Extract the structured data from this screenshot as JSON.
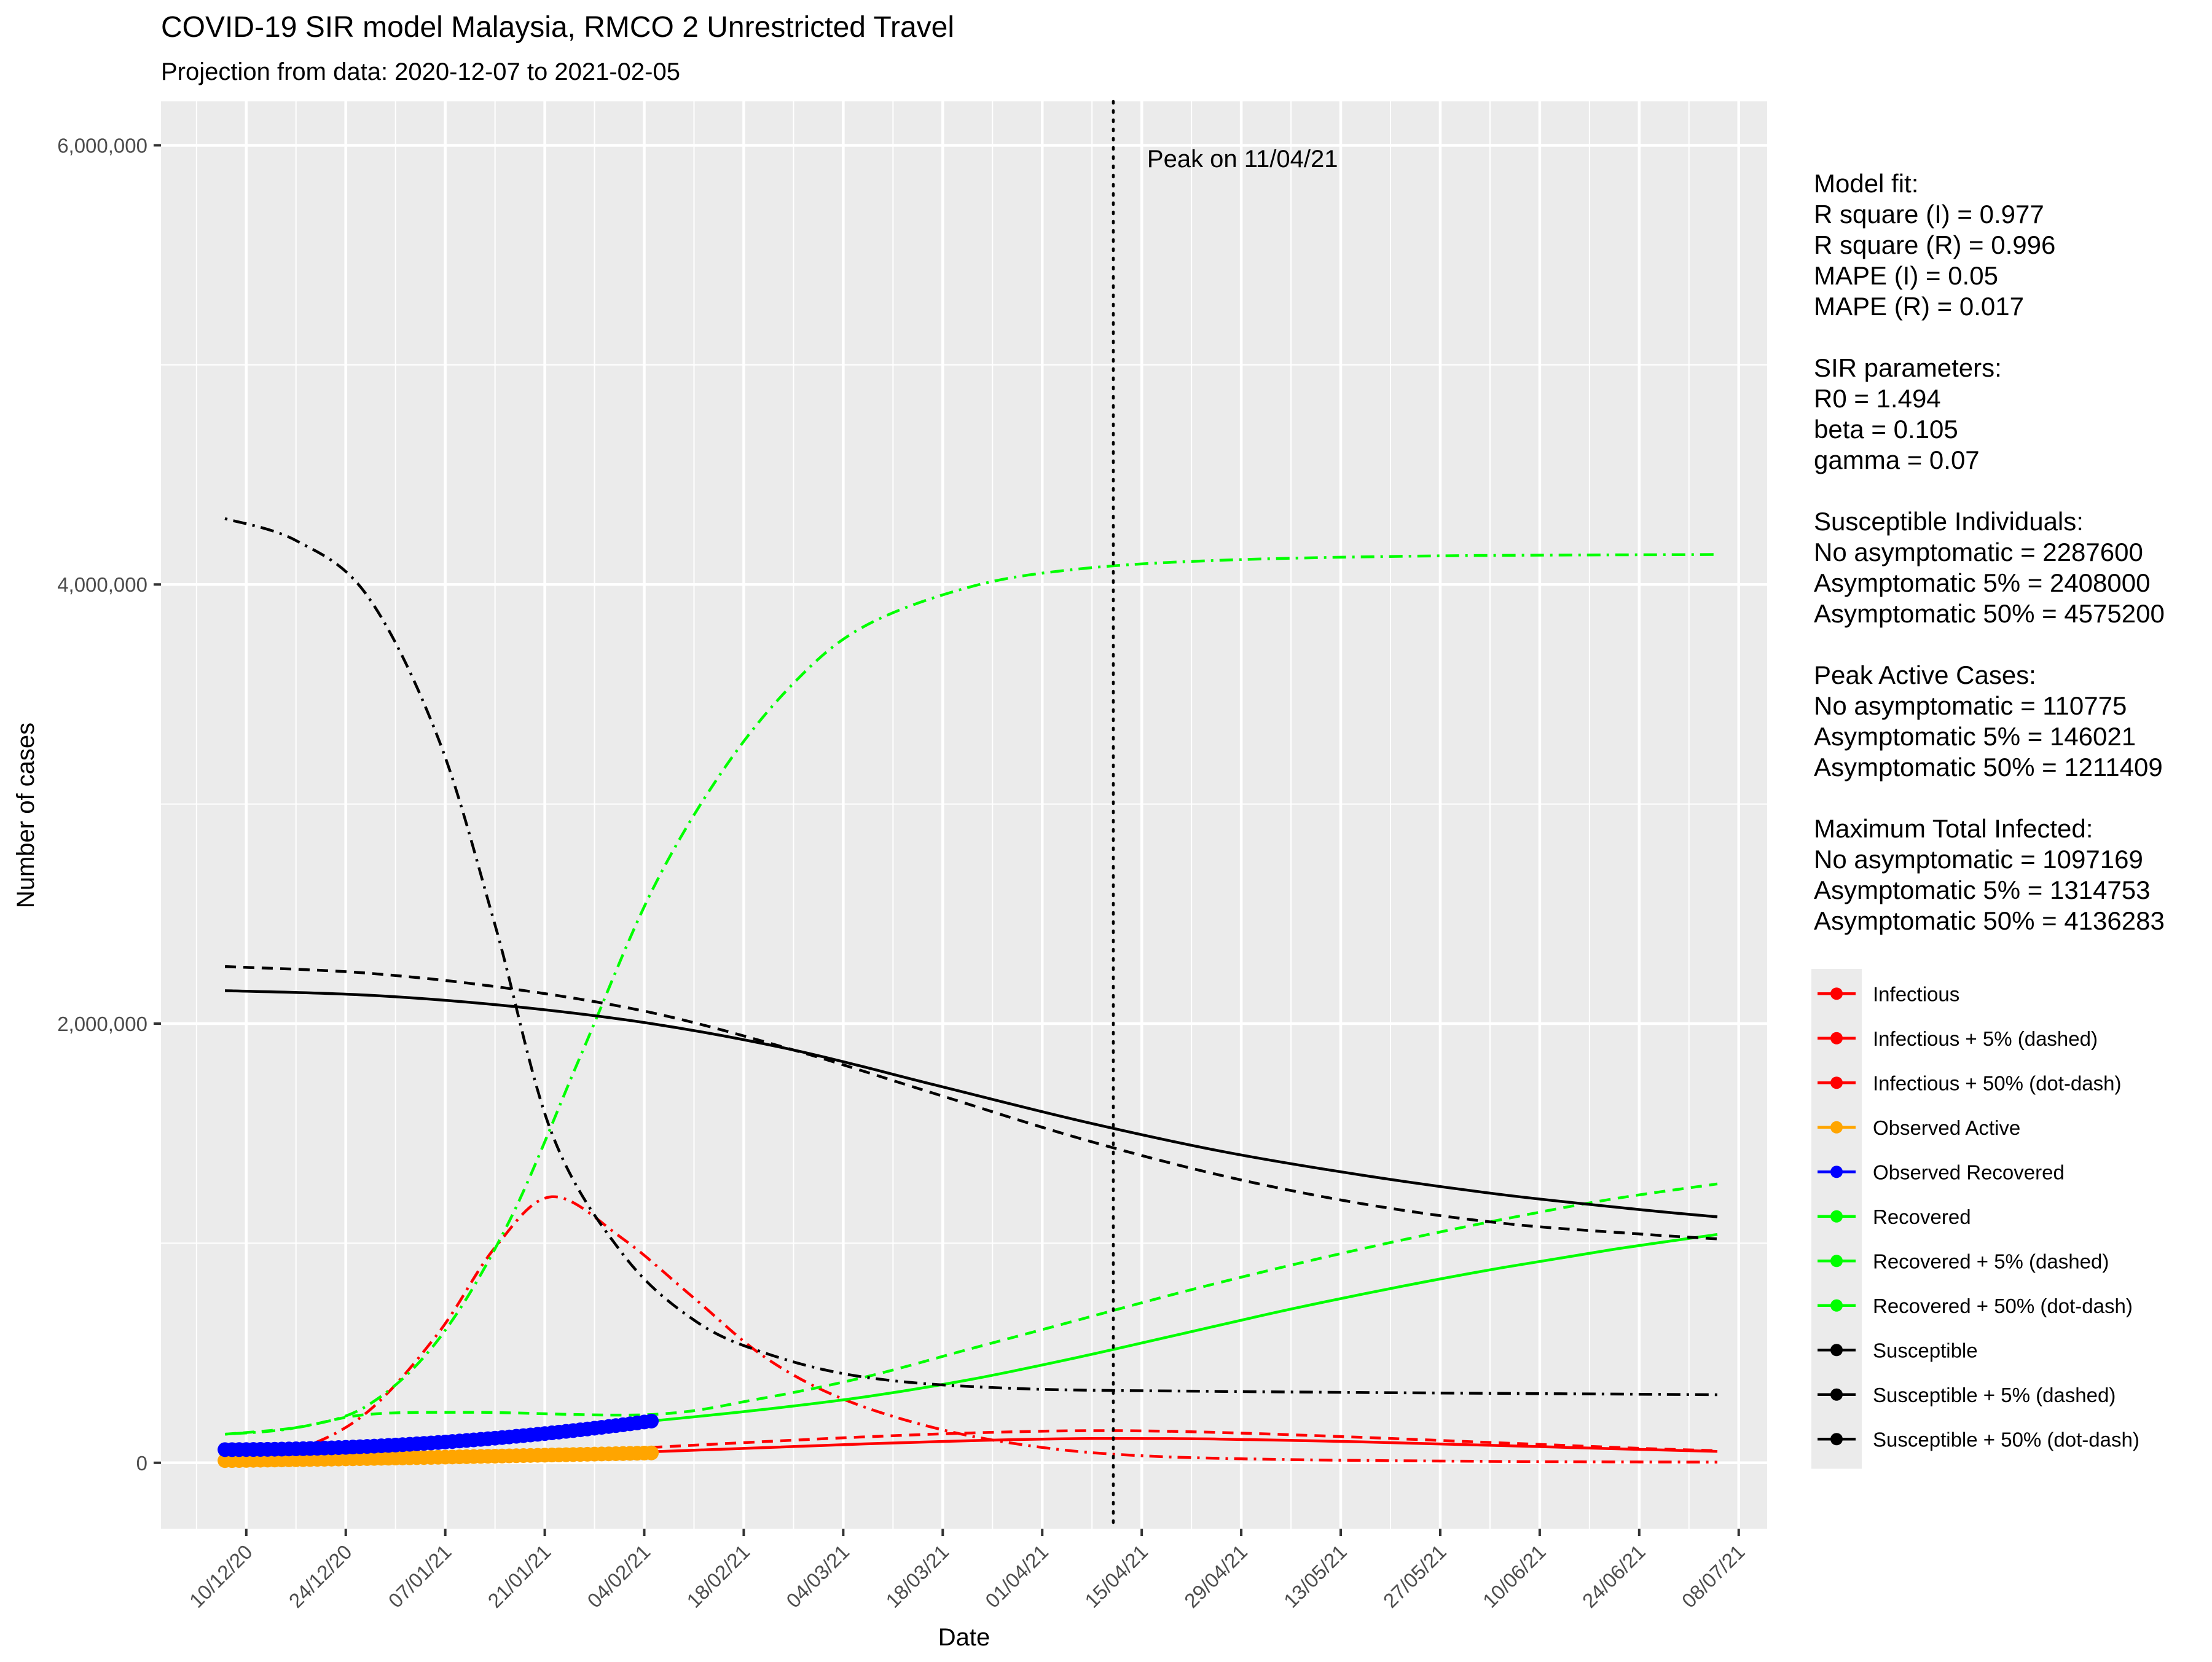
{
  "chart_data": {
    "type": "line",
    "title": "COVID-19 SIR model Malaysia, RMCO 2 Unrestricted Travel",
    "subtitle": "Projection from data: 2020-12-07 to 2021-02-05",
    "xlabel": "Date",
    "ylabel": "Number of cases",
    "x_range": [
      "2020-11-28",
      "2021-07-12"
    ],
    "ylim": [
      -300000,
      6200000
    ],
    "x_ticks": [
      "10/12/20",
      "24/12/20",
      "07/01/21",
      "21/01/21",
      "04/02/21",
      "18/02/21",
      "04/03/21",
      "18/03/21",
      "01/04/21",
      "15/04/21",
      "29/04/21",
      "13/05/21",
      "27/05/21",
      "10/06/21",
      "24/06/21",
      "08/07/21"
    ],
    "x_tick_dates": [
      "2020-12-10",
      "2020-12-24",
      "2021-01-07",
      "2021-01-21",
      "2021-02-04",
      "2021-02-18",
      "2021-03-04",
      "2021-03-18",
      "2021-04-01",
      "2021-04-15",
      "2021-04-29",
      "2021-05-13",
      "2021-05-27",
      "2021-06-10",
      "2021-06-24",
      "2021-07-08"
    ],
    "y_ticks": [
      "0",
      "2,000,000",
      "4,000,000",
      "6,000,000"
    ],
    "y_tick_values": [
      0,
      2000000,
      4000000,
      6000000
    ],
    "grid": true,
    "legend_position": "right",
    "peak_line": {
      "date": "2021-04-11",
      "label": "Peak on 11/04/21"
    },
    "model_lines": [
      {
        "name": "Infectious",
        "color": "#ff0000",
        "dash": "solid",
        "points": [
          [
            "2021-02-05",
            50000
          ],
          [
            "2021-02-20",
            68000
          ],
          [
            "2021-03-07",
            86000
          ],
          [
            "2021-03-22",
            101000
          ],
          [
            "2021-04-01",
            108000
          ],
          [
            "2021-04-11",
            110775
          ],
          [
            "2021-04-26",
            108000
          ],
          [
            "2021-05-16",
            95000
          ],
          [
            "2021-06-05",
            78000
          ],
          [
            "2021-06-25",
            60000
          ],
          [
            "2021-07-05",
            52000
          ]
        ]
      },
      {
        "name": "Infectious + 5% (dashed)",
        "color": "#ff0000",
        "dash": "dashed",
        "points": [
          [
            "2021-02-05",
            70000
          ],
          [
            "2021-02-20",
            95000
          ],
          [
            "2021-03-07",
            118000
          ],
          [
            "2021-03-22",
            136000
          ],
          [
            "2021-04-06",
            146021
          ],
          [
            "2021-04-21",
            142000
          ],
          [
            "2021-05-11",
            122000
          ],
          [
            "2021-06-05",
            90000
          ],
          [
            "2021-06-25",
            65000
          ],
          [
            "2021-07-05",
            55000
          ]
        ]
      },
      {
        "name": "Infectious + 50% (dot-dash)",
        "color": "#ff0000",
        "dash": "dotdash",
        "points": [
          [
            "2020-12-07",
            20000
          ],
          [
            "2020-12-17",
            60000
          ],
          [
            "2020-12-27",
            230000
          ],
          [
            "2021-01-06",
            590000
          ],
          [
            "2021-01-14",
            980000
          ],
          [
            "2021-01-22",
            1211409
          ],
          [
            "2021-02-01",
            1020000
          ],
          [
            "2021-02-11",
            750000
          ],
          [
            "2021-02-21",
            480000
          ],
          [
            "2021-03-04",
            290000
          ],
          [
            "2021-03-18",
            150000
          ],
          [
            "2021-04-01",
            70000
          ],
          [
            "2021-04-15",
            32000
          ],
          [
            "2021-05-05",
            15000
          ],
          [
            "2021-06-05",
            6000
          ],
          [
            "2021-07-05",
            3000
          ]
        ]
      },
      {
        "name": "Recovered",
        "color": "#00ff00",
        "dash": "solid",
        "points": [
          [
            "2021-02-05",
            190000
          ],
          [
            "2021-02-20",
            240000
          ],
          [
            "2021-03-07",
            300000
          ],
          [
            "2021-03-22",
            380000
          ],
          [
            "2021-04-06",
            480000
          ],
          [
            "2021-04-21",
            590000
          ],
          [
            "2021-05-06",
            700000
          ],
          [
            "2021-05-21",
            800000
          ],
          [
            "2021-06-05",
            890000
          ],
          [
            "2021-06-20",
            970000
          ],
          [
            "2021-07-05",
            1040000
          ]
        ]
      },
      {
        "name": "Recovered + 5% (dashed)",
        "color": "#00ff00",
        "dash": "dashed",
        "points": [
          [
            "2020-12-07",
            130000
          ],
          [
            "2020-12-17",
            160000
          ],
          [
            "2020-12-27",
            220000
          ],
          [
            "2021-01-11",
            230000
          ],
          [
            "2021-02-05",
            220000
          ],
          [
            "2021-02-20",
            290000
          ],
          [
            "2021-03-07",
            390000
          ],
          [
            "2021-03-22",
            520000
          ],
          [
            "2021-04-06",
            650000
          ],
          [
            "2021-04-21",
            780000
          ],
          [
            "2021-05-06",
            900000
          ],
          [
            "2021-05-21",
            1010000
          ],
          [
            "2021-06-05",
            1110000
          ],
          [
            "2021-06-20",
            1200000
          ],
          [
            "2021-07-05",
            1270000
          ]
        ]
      },
      {
        "name": "Recovered + 50% (dot-dash)",
        "color": "#00ff00",
        "dash": "dotdash",
        "points": [
          [
            "2020-12-07",
            130000
          ],
          [
            "2020-12-17",
            160000
          ],
          [
            "2020-12-27",
            260000
          ],
          [
            "2021-01-06",
            560000
          ],
          [
            "2021-01-16",
            1100000
          ],
          [
            "2021-01-26",
            1850000
          ],
          [
            "2021-02-05",
            2600000
          ],
          [
            "2021-02-15",
            3150000
          ],
          [
            "2021-02-25",
            3550000
          ],
          [
            "2021-03-07",
            3810000
          ],
          [
            "2021-03-22",
            3990000
          ],
          [
            "2021-04-06",
            4070000
          ],
          [
            "2021-04-26",
            4110000
          ],
          [
            "2021-05-26",
            4130000
          ],
          [
            "2021-07-05",
            4136283
          ]
        ]
      },
      {
        "name": "Susceptible",
        "color": "#000000",
        "dash": "solid",
        "points": [
          [
            "2020-12-07",
            2150000
          ],
          [
            "2020-12-27",
            2130000
          ],
          [
            "2021-01-16",
            2080000
          ],
          [
            "2021-02-05",
            2000000
          ],
          [
            "2021-02-25",
            1880000
          ],
          [
            "2021-03-17",
            1720000
          ],
          [
            "2021-04-06",
            1560000
          ],
          [
            "2021-04-26",
            1420000
          ],
          [
            "2021-05-16",
            1310000
          ],
          [
            "2021-06-05",
            1220000
          ],
          [
            "2021-06-25",
            1150000
          ],
          [
            "2021-07-05",
            1120000
          ]
        ]
      },
      {
        "name": "Susceptible + 5% (dashed)",
        "color": "#000000",
        "dash": "dashed",
        "points": [
          [
            "2020-12-07",
            2260000
          ],
          [
            "2020-12-27",
            2230000
          ],
          [
            "2021-01-16",
            2160000
          ],
          [
            "2021-02-05",
            2050000
          ],
          [
            "2021-02-25",
            1880000
          ],
          [
            "2021-03-17",
            1680000
          ],
          [
            "2021-04-06",
            1480000
          ],
          [
            "2021-04-26",
            1310000
          ],
          [
            "2021-05-16",
            1180000
          ],
          [
            "2021-06-05",
            1090000
          ],
          [
            "2021-06-25",
            1040000
          ],
          [
            "2021-07-05",
            1020000
          ]
        ]
      },
      {
        "name": "Susceptible + 50% (dot-dash)",
        "color": "#000000",
        "dash": "dotdash",
        "points": [
          [
            "2020-12-07",
            4300000
          ],
          [
            "2020-12-17",
            4200000
          ],
          [
            "2020-12-27",
            3950000
          ],
          [
            "2021-01-06",
            3300000
          ],
          [
            "2021-01-14",
            2450000
          ],
          [
            "2021-01-22",
            1500000
          ],
          [
            "2021-02-01",
            950000
          ],
          [
            "2021-02-11",
            650000
          ],
          [
            "2021-02-21",
            500000
          ],
          [
            "2021-03-07",
            390000
          ],
          [
            "2021-03-27",
            340000
          ],
          [
            "2021-04-26",
            325000
          ],
          [
            "2021-07-05",
            310000
          ]
        ]
      }
    ],
    "observed": [
      {
        "name": "Observed Active",
        "color": "#ffa500",
        "start": "2020-12-07",
        "end": "2021-02-05",
        "start_value": 10000,
        "end_value": 45000,
        "curve": 1.2
      },
      {
        "name": "Observed Recovered",
        "color": "#0000ff",
        "start": "2020-12-07",
        "end": "2021-02-05",
        "start_value": 60000,
        "end_value": 190000,
        "curve": 2.0
      }
    ],
    "legend": [
      {
        "label": "Infectious",
        "color": "#ff0000"
      },
      {
        "label": "Infectious + 5% (dashed)",
        "color": "#ff0000"
      },
      {
        "label": "Infectious + 50% (dot-dash)",
        "color": "#ff0000"
      },
      {
        "label": "Observed Active",
        "color": "#ffa500"
      },
      {
        "label": "Observed Recovered",
        "color": "#0000ff"
      },
      {
        "label": "Recovered",
        "color": "#00ff00"
      },
      {
        "label": "Recovered + 5% (dashed)",
        "color": "#00ff00"
      },
      {
        "label": "Recovered + 50% (dot-dash)",
        "color": "#00ff00"
      },
      {
        "label": "Susceptible",
        "color": "#000000"
      },
      {
        "label": "Susceptible + 5% (dashed)",
        "color": "#000000"
      },
      {
        "label": "Susceptible + 50% (dot-dash)",
        "color": "#000000"
      }
    ],
    "annotations": [
      "Model fit:",
      "R square (I) = 0.977",
      "R square (R) = 0.996",
      "MAPE (I) = 0.05",
      "MAPE (R) = 0.017",
      "",
      "SIR parameters:",
      "R0 = 1.494",
      "beta = 0.105",
      "gamma = 0.07",
      "",
      "Susceptible Individuals:",
      "No asymptomatic = 2287600",
      "Asymptomatic 5% = 2408000",
      "Asymptomatic 50% = 4575200",
      "",
      "Peak Active Cases:",
      "No asymptomatic = 110775",
      "Asymptomatic 5% = 146021",
      "Asymptomatic 50% = 1211409",
      "",
      "Maximum Total Infected:",
      "No asymptomatic = 1097169",
      "Asymptomatic 5% = 1314753",
      "Asymptomatic 50% = 4136283"
    ]
  }
}
